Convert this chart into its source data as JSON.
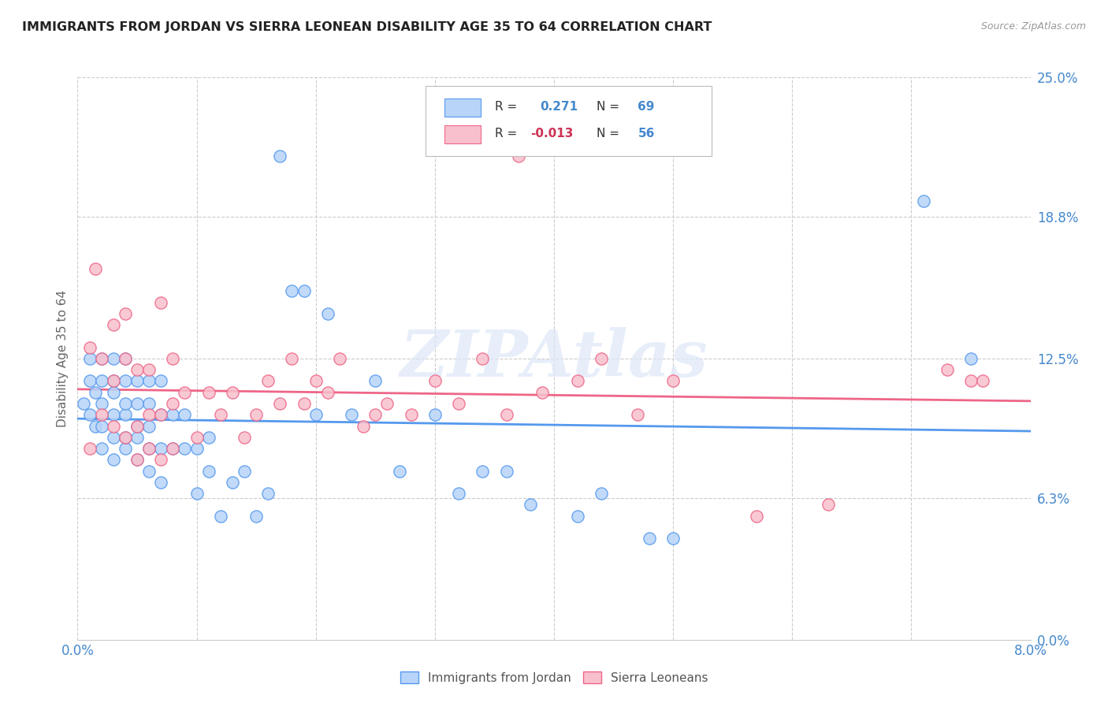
{
  "title": "IMMIGRANTS FROM JORDAN VS SIERRA LEONEAN DISABILITY AGE 35 TO 64 CORRELATION CHART",
  "source": "Source: ZipAtlas.com",
  "ylabel": "Disability Age 35 to 64",
  "x_min": 0.0,
  "x_max": 0.08,
  "y_min": 0.0,
  "y_max": 0.25,
  "x_ticks": [
    0.0,
    0.01,
    0.02,
    0.03,
    0.04,
    0.05,
    0.06,
    0.07,
    0.08
  ],
  "y_ticks": [
    0.0,
    0.063,
    0.125,
    0.188,
    0.25
  ],
  "y_tick_labels": [
    "0.0%",
    "6.3%",
    "12.5%",
    "18.8%",
    "25.0%"
  ],
  "jordan_R": 0.271,
  "jordan_N": 69,
  "sierra_R": -0.013,
  "sierra_N": 56,
  "jordan_color": "#b8d4f8",
  "jordan_edge_color": "#5599ee",
  "sierra_color": "#f8c0cc",
  "sierra_edge_color": "#ee6688",
  "watermark": "ZIPAtlas",
  "jordan_x": [
    0.0005,
    0.001,
    0.001,
    0.001,
    0.0015,
    0.0015,
    0.002,
    0.002,
    0.002,
    0.002,
    0.002,
    0.003,
    0.003,
    0.003,
    0.003,
    0.003,
    0.003,
    0.004,
    0.004,
    0.004,
    0.004,
    0.004,
    0.004,
    0.005,
    0.005,
    0.005,
    0.005,
    0.005,
    0.006,
    0.006,
    0.006,
    0.006,
    0.006,
    0.007,
    0.007,
    0.007,
    0.007,
    0.008,
    0.008,
    0.009,
    0.009,
    0.01,
    0.01,
    0.011,
    0.011,
    0.012,
    0.013,
    0.014,
    0.015,
    0.016,
    0.017,
    0.018,
    0.019,
    0.02,
    0.021,
    0.023,
    0.025,
    0.027,
    0.03,
    0.032,
    0.034,
    0.036,
    0.038,
    0.042,
    0.044,
    0.048,
    0.05,
    0.071,
    0.075
  ],
  "jordan_y": [
    0.105,
    0.1,
    0.115,
    0.125,
    0.095,
    0.11,
    0.085,
    0.095,
    0.105,
    0.115,
    0.125,
    0.08,
    0.09,
    0.1,
    0.11,
    0.115,
    0.125,
    0.085,
    0.09,
    0.1,
    0.105,
    0.115,
    0.125,
    0.08,
    0.09,
    0.095,
    0.105,
    0.115,
    0.075,
    0.085,
    0.095,
    0.105,
    0.115,
    0.07,
    0.085,
    0.1,
    0.115,
    0.085,
    0.1,
    0.085,
    0.1,
    0.065,
    0.085,
    0.075,
    0.09,
    0.055,
    0.07,
    0.075,
    0.055,
    0.065,
    0.215,
    0.155,
    0.155,
    0.1,
    0.145,
    0.1,
    0.115,
    0.075,
    0.1,
    0.065,
    0.075,
    0.075,
    0.06,
    0.055,
    0.065,
    0.045,
    0.045,
    0.195,
    0.125
  ],
  "sierra_x": [
    0.001,
    0.001,
    0.0015,
    0.002,
    0.002,
    0.003,
    0.003,
    0.003,
    0.004,
    0.004,
    0.004,
    0.005,
    0.005,
    0.005,
    0.006,
    0.006,
    0.006,
    0.007,
    0.007,
    0.007,
    0.008,
    0.008,
    0.008,
    0.009,
    0.01,
    0.011,
    0.012,
    0.013,
    0.014,
    0.015,
    0.016,
    0.017,
    0.018,
    0.019,
    0.02,
    0.021,
    0.022,
    0.024,
    0.025,
    0.026,
    0.028,
    0.03,
    0.032,
    0.034,
    0.036,
    0.037,
    0.039,
    0.042,
    0.044,
    0.047,
    0.05,
    0.057,
    0.063,
    0.073,
    0.075,
    0.076
  ],
  "sierra_y": [
    0.085,
    0.13,
    0.165,
    0.1,
    0.125,
    0.095,
    0.115,
    0.14,
    0.09,
    0.125,
    0.145,
    0.08,
    0.095,
    0.12,
    0.085,
    0.1,
    0.12,
    0.08,
    0.1,
    0.15,
    0.085,
    0.105,
    0.125,
    0.11,
    0.09,
    0.11,
    0.1,
    0.11,
    0.09,
    0.1,
    0.115,
    0.105,
    0.125,
    0.105,
    0.115,
    0.11,
    0.125,
    0.095,
    0.1,
    0.105,
    0.1,
    0.115,
    0.105,
    0.125,
    0.1,
    0.215,
    0.11,
    0.115,
    0.125,
    0.1,
    0.115,
    0.055,
    0.06,
    0.12,
    0.115,
    0.115
  ]
}
